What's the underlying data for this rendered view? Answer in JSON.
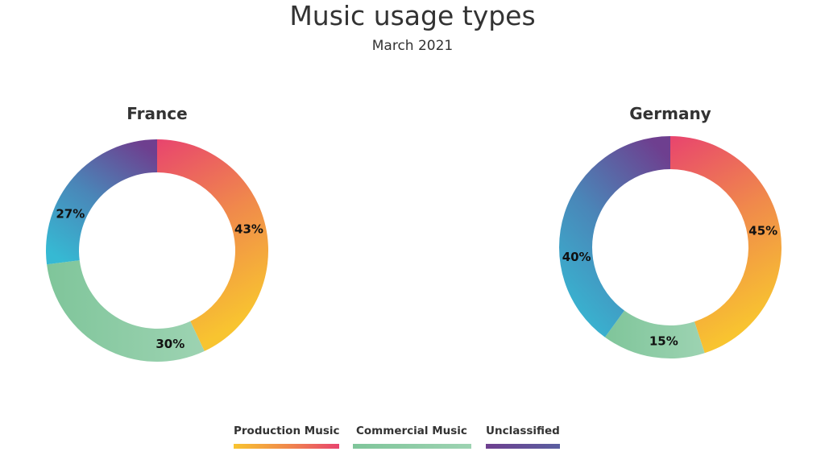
{
  "chart_data": [
    {
      "type": "pie",
      "title": "France",
      "categories": [
        "Production Music",
        "Commercial Music",
        "Unclassified"
      ],
      "values": [
        43,
        30,
        27
      ],
      "labels": [
        "43%",
        "30%",
        "27%"
      ]
    },
    {
      "type": "pie",
      "title": "Germany",
      "categories": [
        "Production Music",
        "Commercial Music",
        "Unclassified"
      ],
      "values": [
        45,
        15,
        40
      ],
      "labels": [
        "45%",
        "15%",
        "40%"
      ]
    }
  ],
  "header": {
    "title": "Music usage types",
    "subtitle": "March 2021"
  },
  "legend": {
    "placement": "bottom",
    "items": [
      {
        "label": "Production Music",
        "colors": [
          "#f8c430",
          "#f08a4b",
          "#e8446e"
        ]
      },
      {
        "label": "Commercial Music",
        "colors": [
          "#7fc59a",
          "#9dd3b2"
        ]
      },
      {
        "label": "Unclassified",
        "colors": [
          "#6e3f8f",
          "#5a5fa0"
        ]
      }
    ]
  },
  "colors": {
    "production": [
      "#e8446e",
      "#f08a4b",
      "#f8c430"
    ],
    "commercial": [
      "#7fc59a",
      "#9dd3b2"
    ],
    "unclassified": [
      "#36b9d3",
      "#4a86b8",
      "#6e3f8f"
    ]
  }
}
